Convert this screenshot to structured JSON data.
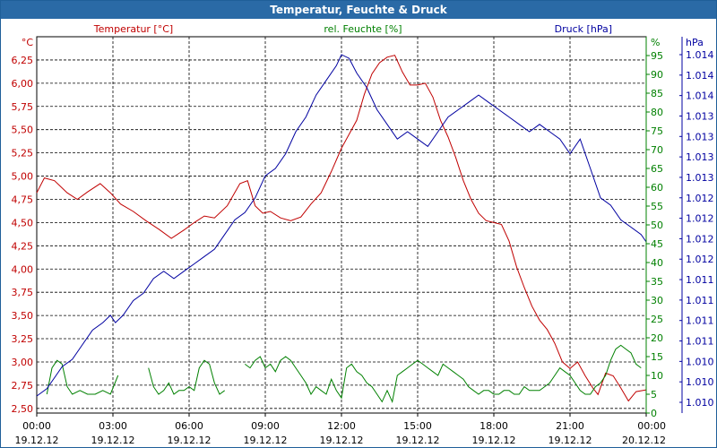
{
  "chart_data": {
    "type": "line",
    "title": "Temperatur, Feuchte & Druck",
    "x_tick_labels": [
      {
        "time": "00:00",
        "date": "19.12.12"
      },
      {
        "time": "03:00",
        "date": "19.12.12"
      },
      {
        "time": "06:00",
        "date": "19.12.12"
      },
      {
        "time": "09:00",
        "date": "19.12.12"
      },
      {
        "time": "12:00",
        "date": "19.12.12"
      },
      {
        "time": "15:00",
        "date": "19.12.12"
      },
      {
        "time": "18:00",
        "date": "19.12.12"
      },
      {
        "time": "21:00",
        "date": "19.12.12"
      },
      {
        "time": "00:00",
        "date": "20.12.12"
      }
    ],
    "xlim_hours": [
      0,
      24
    ],
    "grid": true,
    "axes": {
      "temperature": {
        "unit": "°C",
        "legend": "Temperatur [°C]",
        "ylim": [
          2.45,
          6.5
        ],
        "ticks": [
          "2,50",
          "2,75",
          "3,00",
          "3,25",
          "3,50",
          "3,75",
          "4,00",
          "4,25",
          "4,50",
          "4,75",
          "5,00",
          "5,25",
          "5,50",
          "5,75",
          "6,00",
          "6,25"
        ],
        "tick_values": [
          2.5,
          2.75,
          3.0,
          3.25,
          3.5,
          3.75,
          4.0,
          4.25,
          4.5,
          4.75,
          5.0,
          5.25,
          5.5,
          5.75,
          6.0,
          6.25
        ],
        "color": "#c00000"
      },
      "humidity": {
        "unit": "%",
        "legend": "rel. Feuchte [%]",
        "ylim": [
          0,
          100
        ],
        "ticks": [
          "0",
          "5",
          "10",
          "15",
          "20",
          "25",
          "30",
          "35",
          "40",
          "45",
          "50",
          "55",
          "60",
          "65",
          "70",
          "75",
          "80",
          "85",
          "90",
          "95"
        ],
        "tick_values": [
          0,
          5,
          10,
          15,
          20,
          25,
          30,
          35,
          40,
          45,
          50,
          55,
          60,
          65,
          70,
          75,
          80,
          85,
          90,
          95
        ],
        "color": "#008000"
      },
      "pressure": {
        "unit": "hPa",
        "legend": "Druck [hPa]",
        "ticks": [
          "1.010",
          "1.010",
          "1.010",
          "1.011",
          "1.011",
          "1.011",
          "1.011",
          "1.012",
          "1.012",
          "1.012",
          "1.012",
          "1.013",
          "1.013",
          "1.013",
          "1.013",
          "1.014",
          "1.014",
          "1.014"
        ],
        "color": "#0000a0"
      }
    },
    "series": [
      {
        "name": "Temperatur [°C]",
        "axis": "temperature",
        "color": "#c00000",
        "x": [
          0,
          0.3,
          0.7,
          1.2,
          1.6,
          2.0,
          2.5,
          2.9,
          3.3,
          3.8,
          4.3,
          4.8,
          5.3,
          5.8,
          6.2,
          6.6,
          7.0,
          7.5,
          8.0,
          8.3,
          8.6,
          8.9,
          9.2,
          9.6,
          10.0,
          10.4,
          10.8,
          11.2,
          11.6,
          12.0,
          12.3,
          12.6,
          12.9,
          13.2,
          13.5,
          13.8,
          14.1,
          14.4,
          14.7,
          15.0,
          15.3,
          15.6,
          15.9,
          16.2,
          16.5,
          16.8,
          17.1,
          17.4,
          17.7,
          18.0,
          18.3,
          18.6,
          18.9,
          19.2,
          19.5,
          19.8,
          20.1,
          20.4,
          20.7,
          21.0,
          21.3,
          21.6,
          21.9,
          22.1,
          22.4,
          22.7,
          23.0,
          23.3,
          23.6,
          24.0
        ],
        "values": [
          4.82,
          4.98,
          4.95,
          4.82,
          4.75,
          4.83,
          4.92,
          4.82,
          4.7,
          4.62,
          4.52,
          4.43,
          4.33,
          4.42,
          4.5,
          4.57,
          4.55,
          4.68,
          4.92,
          4.95,
          4.68,
          4.6,
          4.62,
          4.55,
          4.52,
          4.56,
          4.7,
          4.82,
          5.05,
          5.3,
          5.45,
          5.6,
          5.88,
          6.1,
          6.22,
          6.28,
          6.3,
          6.12,
          5.98,
          5.98,
          6.0,
          5.85,
          5.6,
          5.42,
          5.2,
          4.95,
          4.75,
          4.6,
          4.52,
          4.5,
          4.48,
          4.3,
          4.02,
          3.8,
          3.6,
          3.45,
          3.35,
          3.2,
          3.0,
          2.93,
          3.0,
          2.85,
          2.72,
          2.65,
          2.88,
          2.85,
          2.72,
          2.58,
          2.68,
          2.7
        ]
      },
      {
        "name": "rel. Feuchte [%]",
        "axis": "humidity",
        "color": "#008000",
        "x": [
          0.4,
          0.6,
          0.8,
          1.0,
          1.2,
          1.4,
          1.7,
          2.0,
          2.3,
          2.6,
          2.9,
          3.2,
          4.4,
          4.6,
          4.8,
          5.0,
          5.2,
          5.4,
          5.6,
          5.8,
          6.0,
          6.2,
          6.4,
          6.6,
          6.8,
          7.0,
          7.2,
          7.4,
          8.2,
          8.4,
          8.6,
          8.8,
          9.0,
          9.2,
          9.4,
          9.6,
          9.8,
          10.0,
          10.2,
          10.4,
          10.6,
          10.8,
          11.0,
          11.2,
          11.4,
          11.6,
          11.8,
          12.0,
          12.2,
          12.4,
          12.6,
          12.8,
          13.0,
          13.2,
          13.4,
          13.6,
          13.8,
          14.0,
          14.2,
          14.4,
          14.6,
          14.8,
          15.0,
          15.2,
          15.4,
          15.6,
          15.8,
          16.0,
          16.2,
          16.4,
          16.6,
          16.8,
          17.0,
          17.2,
          17.4,
          17.6,
          17.8,
          18.0,
          18.2,
          18.4,
          18.6,
          18.8,
          19.0,
          19.2,
          19.4,
          19.6,
          19.8,
          20.0,
          20.2,
          20.4,
          20.6,
          20.8,
          21.0,
          21.2,
          21.4,
          21.6,
          21.8,
          22.0,
          22.2,
          22.4,
          22.6,
          22.8,
          23.0,
          23.2,
          23.4,
          23.6,
          23.8
        ],
        "values": [
          5,
          12,
          14,
          13,
          7,
          5,
          6,
          5,
          5,
          6,
          5,
          10,
          12,
          7,
          5,
          6,
          8,
          5,
          6,
          6,
          7,
          6,
          12,
          14,
          13,
          8,
          5,
          6,
          13,
          12,
          14,
          15,
          12,
          13,
          11,
          14,
          15,
          14,
          12,
          10,
          8,
          5,
          7,
          6,
          5,
          9,
          6,
          4,
          12,
          13,
          11,
          10,
          8,
          7,
          5,
          3,
          6,
          3,
          10,
          11,
          12,
          13,
          14,
          13,
          12,
          11,
          10,
          13,
          12,
          11,
          10,
          9,
          7,
          6,
          5,
          6,
          6,
          5,
          5,
          6,
          6,
          5,
          5,
          7,
          6,
          6,
          6,
          7,
          8,
          10,
          12,
          11,
          10,
          8,
          6,
          5,
          5,
          7,
          8,
          10,
          14,
          17,
          18,
          17,
          16,
          13,
          12
        ]
      },
      {
        "name": "Druck [hPa]",
        "axis": "pressure",
        "color": "#0000a0",
        "x": [
          0,
          0.4,
          0.8,
          1.0,
          1.4,
          1.8,
          2.2,
          2.6,
          2.9,
          3.1,
          3.4,
          3.8,
          4.2,
          4.6,
          5.0,
          5.4,
          5.8,
          6.2,
          6.6,
          7.0,
          7.4,
          7.8,
          8.2,
          8.6,
          9.0,
          9.4,
          9.8,
          10.2,
          10.6,
          11.0,
          11.4,
          11.8,
          12.0,
          12.3,
          12.6,
          13.0,
          13.4,
          13.8,
          14.2,
          14.6,
          15.0,
          15.4,
          15.8,
          16.2,
          16.6,
          17.0,
          17.4,
          17.8,
          18.2,
          18.6,
          19.0,
          19.4,
          19.8,
          20.2,
          20.6,
          21.0,
          21.4,
          21.8,
          22.2,
          22.6,
          23.0,
          23.4,
          23.8,
          24.0
        ],
        "values": [
          1.0099,
          1.01,
          1.0102,
          1.0103,
          1.0104,
          1.0106,
          1.0108,
          1.0109,
          1.011,
          1.0109,
          1.011,
          1.0112,
          1.0113,
          1.0115,
          1.0116,
          1.0115,
          1.0116,
          1.0117,
          1.0118,
          1.0119,
          1.0121,
          1.0123,
          1.0124,
          1.0126,
          1.0129,
          1.013,
          1.0132,
          1.0135,
          1.0137,
          1.014,
          1.0142,
          1.0144,
          1.01455,
          1.0145,
          1.0143,
          1.0141,
          1.0138,
          1.0136,
          1.0134,
          1.0135,
          1.0134,
          1.0133,
          1.0135,
          1.0137,
          1.0138,
          1.0139,
          1.014,
          1.0139,
          1.0138,
          1.0137,
          1.0136,
          1.0135,
          1.0136,
          1.0135,
          1.0134,
          1.0132,
          1.0134,
          1.013,
          1.0126,
          1.0125,
          1.0123,
          1.0122,
          1.0121,
          1.012
        ]
      }
    ]
  }
}
